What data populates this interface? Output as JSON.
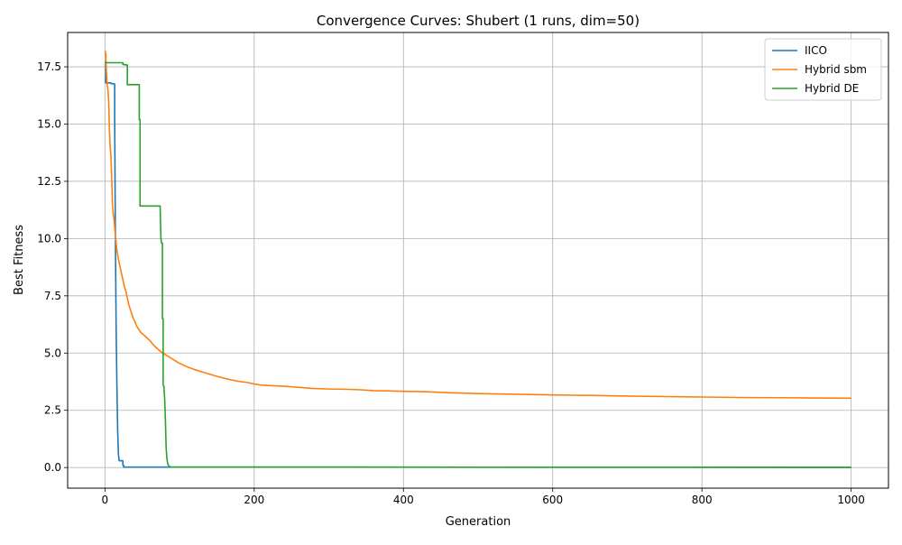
{
  "chart_data": {
    "type": "line",
    "title": "Convergence Curves: Shubert (1 runs, dim=50)",
    "xlabel": "Generation",
    "ylabel": "Best Fitness",
    "xlim": [
      -50,
      1050
    ],
    "ylim": [
      -0.9,
      19.0
    ],
    "xticks": [
      0,
      200,
      400,
      600,
      800,
      1000
    ],
    "yticks": [
      0.0,
      2.5,
      5.0,
      7.5,
      10.0,
      12.5,
      15.0,
      17.5
    ],
    "xtick_labels": [
      "0",
      "200",
      "400",
      "600",
      "800",
      "1000"
    ],
    "ytick_labels": [
      "0.0",
      "2.5",
      "5.0",
      "7.5",
      "10.0",
      "12.5",
      "15.0",
      "17.5"
    ],
    "grid": true,
    "legend_position": "top-right",
    "series": [
      {
        "name": "IICO",
        "color": "#1f77b4",
        "x": [
          0,
          1,
          1,
          8,
          8,
          13,
          13,
          14,
          15,
          16,
          17,
          18,
          19,
          20,
          20,
          24,
          24,
          25,
          25,
          1000
        ],
        "y": [
          17.7,
          17.7,
          16.8,
          16.8,
          16.77,
          16.75,
          15.2,
          10.0,
          6.0,
          3.6,
          1.7,
          0.6,
          0.3,
          0.3,
          0.3,
          0.3,
          0.1,
          0.1,
          0.02,
          0.01
        ]
      },
      {
        "name": "Hybrid sbm",
        "color": "#ff7f0e",
        "x": [
          0,
          1,
          2,
          3,
          4,
          5,
          6,
          7,
          8,
          9,
          10,
          11,
          12,
          13,
          14,
          15,
          16,
          18,
          20,
          22,
          24,
          26,
          28,
          30,
          32,
          34,
          36,
          38,
          40,
          42,
          44,
          46,
          48,
          50,
          55,
          60,
          65,
          70,
          75,
          80,
          85,
          90,
          95,
          100,
          110,
          120,
          130,
          140,
          150,
          160,
          170,
          180,
          190,
          200,
          210,
          220,
          240,
          260,
          280,
          300,
          320,
          340,
          360,
          380,
          400,
          420,
          440,
          460,
          480,
          500,
          550,
          600,
          650,
          700,
          750,
          800,
          850,
          900,
          950,
          1000
        ],
        "y": [
          18.2,
          18.1,
          17.2,
          16.7,
          16.5,
          16.0,
          14.7,
          14.0,
          13.6,
          12.7,
          11.5,
          11.1,
          10.9,
          10.5,
          10.1,
          9.8,
          9.5,
          9.1,
          8.8,
          8.5,
          8.2,
          7.9,
          7.7,
          7.4,
          7.1,
          6.9,
          6.7,
          6.5,
          6.4,
          6.2,
          6.1,
          6.0,
          5.9,
          5.85,
          5.7,
          5.55,
          5.35,
          5.2,
          5.05,
          4.95,
          4.85,
          4.75,
          4.65,
          4.55,
          4.4,
          4.28,
          4.18,
          4.08,
          3.98,
          3.9,
          3.82,
          3.76,
          3.72,
          3.65,
          3.6,
          3.58,
          3.55,
          3.5,
          3.45,
          3.43,
          3.42,
          3.4,
          3.36,
          3.35,
          3.33,
          3.32,
          3.3,
          3.27,
          3.25,
          3.23,
          3.2,
          3.17,
          3.15,
          3.12,
          3.1,
          3.08,
          3.06,
          3.05,
          3.04,
          3.03
        ]
      },
      {
        "name": "Hybrid DE",
        "color": "#2ca02c",
        "x": [
          0,
          1,
          1,
          24,
          24,
          28,
          28,
          30,
          30,
          46,
          46,
          47,
          47,
          74,
          74,
          75,
          76,
          77,
          77,
          78,
          78,
          79,
          80,
          81,
          82,
          83,
          84,
          85,
          86,
          88,
          90,
          1000
        ],
        "y": [
          17.7,
          17.7,
          17.68,
          17.68,
          17.6,
          17.6,
          17.58,
          17.58,
          16.72,
          16.72,
          15.2,
          15.2,
          11.42,
          11.42,
          11.3,
          10.0,
          9.8,
          9.8,
          6.5,
          6.5,
          3.6,
          3.55,
          3.0,
          2.1,
          0.85,
          0.4,
          0.2,
          0.1,
          0.05,
          0.03,
          0.02,
          0.01
        ]
      }
    ]
  }
}
